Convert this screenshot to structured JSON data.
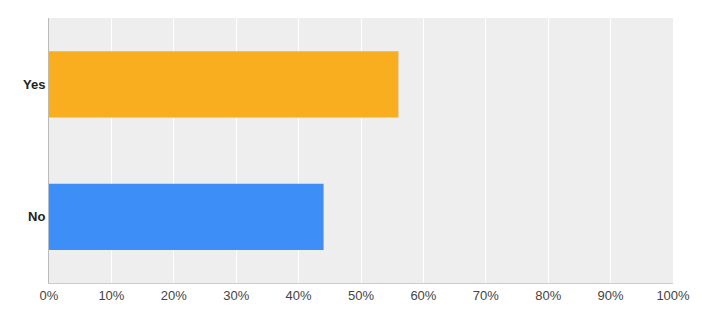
{
  "chart_data": {
    "type": "bar",
    "orientation": "horizontal",
    "categories": [
      "Yes",
      "No"
    ],
    "values": [
      56,
      44
    ],
    "colors": [
      "#f8ae1f",
      "#3e8ef7"
    ],
    "xlim": [
      0,
      100
    ],
    "xticks": [
      {
        "value": 0,
        "label": "0%"
      },
      {
        "value": 10,
        "label": "10%"
      },
      {
        "value": 20,
        "label": "20%"
      },
      {
        "value": 30,
        "label": "30%"
      },
      {
        "value": 40,
        "label": "40%"
      },
      {
        "value": 50,
        "label": "50%"
      },
      {
        "value": 60,
        "label": "60%"
      },
      {
        "value": 70,
        "label": "70%"
      },
      {
        "value": 80,
        "label": "80%"
      },
      {
        "value": 90,
        "label": "90%"
      },
      {
        "value": 100,
        "label": "100%"
      }
    ],
    "grid": true
  }
}
